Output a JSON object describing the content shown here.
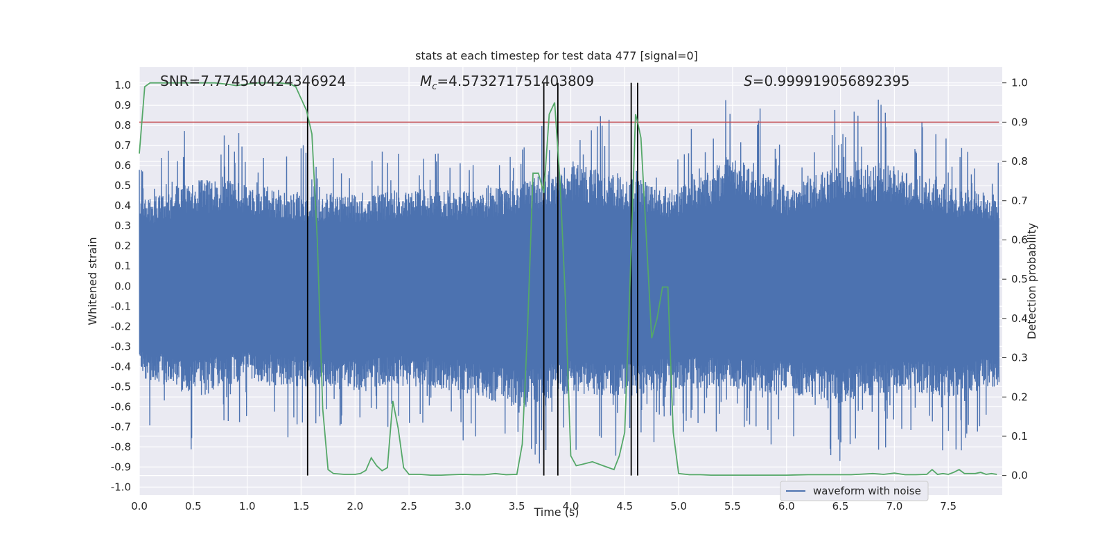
{
  "chart_data": {
    "type": "line",
    "title": "stats at each timestep for test data 477 [signal=0]",
    "xlabel": "Time (s)",
    "ylabel_left": "Whitened strain",
    "ylabel_right": "Detection probability",
    "xlim": [
      0.0,
      8.0
    ],
    "ylim_left": [
      -1.04,
      1.09
    ],
    "ylim_right": [
      -0.05,
      1.04
    ],
    "x_ticks": [
      "0.0",
      "0.5",
      "1.0",
      "1.5",
      "2.0",
      "2.5",
      "3.0",
      "3.5",
      "4.0",
      "4.5",
      "5.0",
      "5.5",
      "6.0",
      "6.5",
      "7.0",
      "7.5"
    ],
    "y_ticks_left": [
      "-1.0",
      "-0.9",
      "-0.8",
      "-0.7",
      "-0.6",
      "-0.5",
      "-0.4",
      "-0.3",
      "-0.2",
      "-0.1",
      "0.0",
      "0.1",
      "0.2",
      "0.3",
      "0.4",
      "0.5",
      "0.6",
      "0.7",
      "0.8",
      "0.9",
      "1.0"
    ],
    "y_ticks_right": [
      "0.0",
      "0.1",
      "0.2",
      "0.3",
      "0.4",
      "0.5",
      "0.6",
      "0.7",
      "0.8",
      "0.9",
      "1.0"
    ],
    "annotations": {
      "snr": "SNR=7.774540424346924",
      "mc": "=4.573271751403809",
      "s": "=0.999919056892395"
    },
    "legend": {
      "position": "lower-right",
      "entries": [
        "waveform with noise"
      ]
    },
    "threshold_probability": 0.9,
    "vertical_lines_s": [
      1.56,
      3.75,
      3.88,
      4.56,
      4.62
    ],
    "series": [
      {
        "name": "waveform with noise",
        "axis": "left",
        "color": "#4c72b0",
        "description_values": "dense noise between about -0.93 and 1.0",
        "envelope": {
          "x": [
            0.0,
            0.5,
            1.0,
            1.5,
            2.0,
            2.5,
            3.0,
            3.5,
            4.0,
            4.5,
            5.0,
            5.5,
            6.0,
            6.5,
            7.0,
            7.5,
            8.0
          ],
          "upper": [
            0.65,
            0.82,
            0.78,
            0.72,
            0.7,
            0.75,
            0.73,
            0.78,
            0.95,
            0.83,
            0.75,
            1.0,
            0.78,
            0.95,
            0.92,
            0.78,
            0.7
          ],
          "lower": [
            -0.7,
            -0.82,
            -0.72,
            -0.78,
            -0.8,
            -0.75,
            -0.82,
            -0.93,
            -0.82,
            -0.85,
            -0.78,
            -0.8,
            -0.82,
            -0.9,
            -0.8,
            -0.85,
            -0.78
          ]
        }
      },
      {
        "axis": "right",
        "color": "#55a868",
        "x": [
          0.0,
          0.05,
          0.1,
          0.2,
          0.3,
          0.4,
          0.5,
          0.6,
          0.7,
          0.8,
          0.9,
          1.0,
          1.1,
          1.2,
          1.3,
          1.4,
          1.45,
          1.5,
          1.55,
          1.6,
          1.65,
          1.7,
          1.75,
          1.8,
          1.9,
          2.0,
          2.05,
          2.1,
          2.15,
          2.2,
          2.25,
          2.3,
          2.35,
          2.4,
          2.45,
          2.5,
          2.55,
          2.6,
          2.7,
          2.8,
          2.9,
          3.0,
          3.1,
          3.2,
          3.3,
          3.4,
          3.5,
          3.55,
          3.6,
          3.65,
          3.7,
          3.75,
          3.8,
          3.85,
          3.9,
          3.95,
          4.0,
          4.05,
          4.1,
          4.2,
          4.3,
          4.4,
          4.45,
          4.5,
          4.55,
          4.6,
          4.62,
          4.65,
          4.7,
          4.75,
          4.8,
          4.85,
          4.9,
          4.95,
          5.0,
          5.1,
          5.2,
          5.3,
          5.4,
          5.6,
          5.8,
          6.0,
          6.2,
          6.4,
          6.6,
          6.8,
          6.9,
          7.0,
          7.1,
          7.2,
          7.3,
          7.35,
          7.4,
          7.45,
          7.5,
          7.55,
          7.6,
          7.65,
          7.7,
          7.75,
          7.8,
          7.85,
          7.9,
          7.95
        ],
        "y": [
          0.82,
          0.99,
          1.0,
          1.0,
          1.0,
          1.0,
          1.0,
          1.0,
          1.0,
          0.997,
          0.993,
          0.997,
          1.0,
          1.0,
          1.0,
          0.997,
          0.99,
          0.96,
          0.93,
          0.87,
          0.6,
          0.17,
          0.015,
          0.005,
          0.003,
          0.003,
          0.005,
          0.013,
          0.045,
          0.025,
          0.012,
          0.02,
          0.19,
          0.12,
          0.02,
          0.003,
          0.003,
          0.003,
          0.001,
          0.001,
          0.002,
          0.003,
          0.002,
          0.002,
          0.005,
          0.002,
          0.003,
          0.08,
          0.38,
          0.77,
          0.77,
          0.72,
          0.92,
          0.95,
          0.75,
          0.45,
          0.05,
          0.025,
          0.028,
          0.035,
          0.025,
          0.015,
          0.05,
          0.11,
          0.5,
          0.92,
          0.9,
          0.86,
          0.61,
          0.35,
          0.4,
          0.48,
          0.48,
          0.11,
          0.005,
          0.002,
          0.002,
          0.001,
          0.001,
          0.001,
          0.001,
          0.001,
          0.002,
          0.002,
          0.002,
          0.005,
          0.003,
          0.006,
          0.002,
          0.002,
          0.003,
          0.015,
          0.003,
          0.005,
          0.003,
          0.008,
          0.015,
          0.005,
          0.005,
          0.005,
          0.008,
          0.003,
          0.005,
          0.003
        ]
      },
      {
        "axis": "right",
        "color": "#c44e52",
        "x": [
          0.0,
          8.0
        ],
        "y": [
          0.9,
          0.9
        ]
      }
    ]
  }
}
